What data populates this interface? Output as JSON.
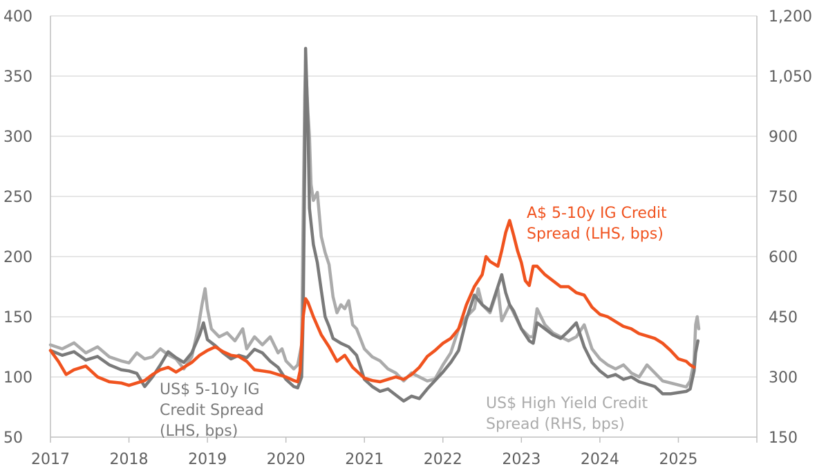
{
  "chart_data": {
    "type": "line",
    "title": "",
    "xlabel": "",
    "ylabel": "",
    "x_ticks": [
      "2017",
      "2018",
      "2019",
      "2020",
      "2021",
      "2022",
      "2023",
      "2024",
      "2025"
    ],
    "xlim": [
      2017,
      2026
    ],
    "y_left": {
      "lim": [
        50,
        400
      ],
      "ticks": [
        "50",
        "100",
        "150",
        "200",
        "250",
        "300",
        "350",
        "400"
      ]
    },
    "y_right": {
      "lim": [
        150,
        1200
      ],
      "ticks": [
        "150",
        "300",
        "450",
        "600",
        "750",
        "900",
        "1,050",
        "1,200"
      ]
    },
    "grid": true,
    "series": [
      {
        "name": "US$ High Yield Credit Spread (RHS, bps)",
        "axis": "right",
        "color": "#ababab",
        "points": [
          [
            2017.0,
            380
          ],
          [
            2017.15,
            370
          ],
          [
            2017.3,
            385
          ],
          [
            2017.45,
            360
          ],
          [
            2017.6,
            375
          ],
          [
            2017.75,
            350
          ],
          [
            2017.9,
            340
          ],
          [
            2018.0,
            335
          ],
          [
            2018.1,
            360
          ],
          [
            2018.2,
            345
          ],
          [
            2018.3,
            350
          ],
          [
            2018.4,
            370
          ],
          [
            2018.5,
            355
          ],
          [
            2018.6,
            345
          ],
          [
            2018.7,
            320
          ],
          [
            2018.8,
            350
          ],
          [
            2018.88,
            420
          ],
          [
            2018.93,
            480
          ],
          [
            2018.97,
            520
          ],
          [
            2019.0,
            470
          ],
          [
            2019.05,
            420
          ],
          [
            2019.15,
            400
          ],
          [
            2019.25,
            410
          ],
          [
            2019.35,
            390
          ],
          [
            2019.45,
            420
          ],
          [
            2019.5,
            370
          ],
          [
            2019.6,
            400
          ],
          [
            2019.7,
            380
          ],
          [
            2019.8,
            400
          ],
          [
            2019.9,
            360
          ],
          [
            2019.95,
            370
          ],
          [
            2020.0,
            340
          ],
          [
            2020.1,
            320
          ],
          [
            2020.15,
            330
          ],
          [
            2020.2,
            380
          ],
          [
            2020.22,
            700
          ],
          [
            2020.24,
            1000
          ],
          [
            2020.25,
            1090
          ],
          [
            2020.28,
            960
          ],
          [
            2020.3,
            900
          ],
          [
            2020.32,
            780
          ],
          [
            2020.35,
            740
          ],
          [
            2020.4,
            760
          ],
          [
            2020.45,
            650
          ],
          [
            2020.5,
            610
          ],
          [
            2020.55,
            580
          ],
          [
            2020.6,
            500
          ],
          [
            2020.65,
            460
          ],
          [
            2020.7,
            480
          ],
          [
            2020.75,
            470
          ],
          [
            2020.8,
            490
          ],
          [
            2020.85,
            430
          ],
          [
            2020.9,
            420
          ],
          [
            2021.0,
            370
          ],
          [
            2021.1,
            350
          ],
          [
            2021.2,
            340
          ],
          [
            2021.3,
            320
          ],
          [
            2021.4,
            310
          ],
          [
            2021.5,
            290
          ],
          [
            2021.6,
            310
          ],
          [
            2021.7,
            300
          ],
          [
            2021.8,
            290
          ],
          [
            2021.9,
            295
          ],
          [
            2022.0,
            330
          ],
          [
            2022.1,
            360
          ],
          [
            2022.2,
            420
          ],
          [
            2022.3,
            450
          ],
          [
            2022.4,
            470
          ],
          [
            2022.45,
            520
          ],
          [
            2022.5,
            480
          ],
          [
            2022.6,
            460
          ],
          [
            2022.7,
            520
          ],
          [
            2022.75,
            440
          ],
          [
            2022.85,
            480
          ],
          [
            2022.95,
            440
          ],
          [
            2023.0,
            420
          ],
          [
            2023.1,
            400
          ],
          [
            2023.15,
            400
          ],
          [
            2023.2,
            470
          ],
          [
            2023.3,
            430
          ],
          [
            2023.4,
            410
          ],
          [
            2023.5,
            400
          ],
          [
            2023.6,
            390
          ],
          [
            2023.7,
            400
          ],
          [
            2023.8,
            430
          ],
          [
            2023.9,
            370
          ],
          [
            2024.0,
            345
          ],
          [
            2024.1,
            330
          ],
          [
            2024.2,
            320
          ],
          [
            2024.3,
            330
          ],
          [
            2024.4,
            310
          ],
          [
            2024.5,
            300
          ],
          [
            2024.6,
            330
          ],
          [
            2024.7,
            310
          ],
          [
            2024.8,
            290
          ],
          [
            2024.9,
            285
          ],
          [
            2025.0,
            280
          ],
          [
            2025.1,
            275
          ],
          [
            2025.15,
            290
          ],
          [
            2025.2,
            340
          ],
          [
            2025.22,
            430
          ],
          [
            2025.24,
            450
          ],
          [
            2025.26,
            420
          ]
        ]
      },
      {
        "name": "US$ 5-10y IG Credit Spread (LHS, bps)",
        "axis": "left",
        "color": "#7a7a7a",
        "points": [
          [
            2017.0,
            122
          ],
          [
            2017.15,
            118
          ],
          [
            2017.3,
            121
          ],
          [
            2017.45,
            114
          ],
          [
            2017.6,
            117
          ],
          [
            2017.75,
            110
          ],
          [
            2017.9,
            106
          ],
          [
            2018.0,
            105
          ],
          [
            2018.1,
            103
          ],
          [
            2018.2,
            92
          ],
          [
            2018.3,
            100
          ],
          [
            2018.4,
            110
          ],
          [
            2018.5,
            121
          ],
          [
            2018.6,
            116
          ],
          [
            2018.7,
            112
          ],
          [
            2018.8,
            120
          ],
          [
            2018.9,
            135
          ],
          [
            2018.95,
            145
          ],
          [
            2019.0,
            131
          ],
          [
            2019.1,
            126
          ],
          [
            2019.2,
            120
          ],
          [
            2019.3,
            115
          ],
          [
            2019.4,
            118
          ],
          [
            2019.5,
            116
          ],
          [
            2019.6,
            123
          ],
          [
            2019.7,
            120
          ],
          [
            2019.8,
            113
          ],
          [
            2019.9,
            108
          ],
          [
            2020.0,
            98
          ],
          [
            2020.1,
            92
          ],
          [
            2020.15,
            91
          ],
          [
            2020.2,
            100
          ],
          [
            2020.22,
            150
          ],
          [
            2020.24,
            280
          ],
          [
            2020.25,
            373
          ],
          [
            2020.28,
            310
          ],
          [
            2020.3,
            240
          ],
          [
            2020.35,
            210
          ],
          [
            2020.4,
            195
          ],
          [
            2020.45,
            172
          ],
          [
            2020.5,
            150
          ],
          [
            2020.55,
            142
          ],
          [
            2020.6,
            132
          ],
          [
            2020.7,
            128
          ],
          [
            2020.8,
            125
          ],
          [
            2020.9,
            118
          ],
          [
            2021.0,
            98
          ],
          [
            2021.1,
            92
          ],
          [
            2021.2,
            88
          ],
          [
            2021.3,
            90
          ],
          [
            2021.4,
            85
          ],
          [
            2021.5,
            80
          ],
          [
            2021.6,
            84
          ],
          [
            2021.7,
            82
          ],
          [
            2021.8,
            90
          ],
          [
            2021.9,
            97
          ],
          [
            2022.0,
            104
          ],
          [
            2022.1,
            112
          ],
          [
            2022.2,
            122
          ],
          [
            2022.3,
            148
          ],
          [
            2022.4,
            168
          ],
          [
            2022.5,
            160
          ],
          [
            2022.6,
            155
          ],
          [
            2022.7,
            175
          ],
          [
            2022.75,
            185
          ],
          [
            2022.8,
            170
          ],
          [
            2022.85,
            160
          ],
          [
            2022.9,
            155
          ],
          [
            2023.0,
            140
          ],
          [
            2023.1,
            130
          ],
          [
            2023.15,
            128
          ],
          [
            2023.2,
            145
          ],
          [
            2023.3,
            140
          ],
          [
            2023.4,
            135
          ],
          [
            2023.5,
            132
          ],
          [
            2023.6,
            138
          ],
          [
            2023.7,
            145
          ],
          [
            2023.8,
            125
          ],
          [
            2023.9,
            112
          ],
          [
            2024.0,
            105
          ],
          [
            2024.1,
            100
          ],
          [
            2024.2,
            102
          ],
          [
            2024.3,
            98
          ],
          [
            2024.4,
            100
          ],
          [
            2024.5,
            96
          ],
          [
            2024.6,
            94
          ],
          [
            2024.7,
            92
          ],
          [
            2024.8,
            86
          ],
          [
            2024.9,
            86
          ],
          [
            2025.0,
            87
          ],
          [
            2025.1,
            88
          ],
          [
            2025.15,
            90
          ],
          [
            2025.2,
            105
          ],
          [
            2025.22,
            120
          ],
          [
            2025.25,
            130
          ]
        ]
      },
      {
        "name": "A$ 5-10y IG Credit Spread (LHS, bps)",
        "axis": "left",
        "color": "#f0531f",
        "points": [
          [
            2017.0,
            122
          ],
          [
            2017.1,
            113
          ],
          [
            2017.2,
            102
          ],
          [
            2017.3,
            106
          ],
          [
            2017.45,
            109
          ],
          [
            2017.6,
            100
          ],
          [
            2017.75,
            96
          ],
          [
            2017.9,
            95
          ],
          [
            2018.0,
            93
          ],
          [
            2018.1,
            95
          ],
          [
            2018.2,
            97
          ],
          [
            2018.3,
            102
          ],
          [
            2018.4,
            106
          ],
          [
            2018.5,
            108
          ],
          [
            2018.6,
            104
          ],
          [
            2018.7,
            108
          ],
          [
            2018.8,
            112
          ],
          [
            2018.9,
            118
          ],
          [
            2019.0,
            122
          ],
          [
            2019.1,
            125
          ],
          [
            2019.2,
            121
          ],
          [
            2019.3,
            118
          ],
          [
            2019.4,
            117
          ],
          [
            2019.5,
            113
          ],
          [
            2019.6,
            106
          ],
          [
            2019.7,
            105
          ],
          [
            2019.8,
            104
          ],
          [
            2019.9,
            102
          ],
          [
            2020.0,
            100
          ],
          [
            2020.1,
            97
          ],
          [
            2020.15,
            96
          ],
          [
            2020.18,
            105
          ],
          [
            2020.22,
            150
          ],
          [
            2020.25,
            165
          ],
          [
            2020.28,
            162
          ],
          [
            2020.35,
            150
          ],
          [
            2020.45,
            135
          ],
          [
            2020.55,
            125
          ],
          [
            2020.65,
            113
          ],
          [
            2020.75,
            118
          ],
          [
            2020.85,
            108
          ],
          [
            2020.95,
            102
          ],
          [
            2021.0,
            99
          ],
          [
            2021.1,
            97
          ],
          [
            2021.2,
            96
          ],
          [
            2021.3,
            98
          ],
          [
            2021.4,
            100
          ],
          [
            2021.5,
            98
          ],
          [
            2021.6,
            102
          ],
          [
            2021.7,
            108
          ],
          [
            2021.8,
            117
          ],
          [
            2021.9,
            122
          ],
          [
            2022.0,
            128
          ],
          [
            2022.1,
            132
          ],
          [
            2022.2,
            140
          ],
          [
            2022.3,
            160
          ],
          [
            2022.4,
            175
          ],
          [
            2022.5,
            185
          ],
          [
            2022.55,
            200
          ],
          [
            2022.6,
            196
          ],
          [
            2022.7,
            192
          ],
          [
            2022.75,
            205
          ],
          [
            2022.8,
            220
          ],
          [
            2022.85,
            230
          ],
          [
            2022.9,
            218
          ],
          [
            2022.95,
            205
          ],
          [
            2023.0,
            195
          ],
          [
            2023.05,
            180
          ],
          [
            2023.1,
            176
          ],
          [
            2023.15,
            192
          ],
          [
            2023.2,
            192
          ],
          [
            2023.3,
            185
          ],
          [
            2023.4,
            180
          ],
          [
            2023.5,
            175
          ],
          [
            2023.6,
            175
          ],
          [
            2023.7,
            170
          ],
          [
            2023.8,
            168
          ],
          [
            2023.9,
            158
          ],
          [
            2024.0,
            152
          ],
          [
            2024.1,
            150
          ],
          [
            2024.2,
            146
          ],
          [
            2024.3,
            142
          ],
          [
            2024.4,
            140
          ],
          [
            2024.5,
            136
          ],
          [
            2024.6,
            134
          ],
          [
            2024.7,
            132
          ],
          [
            2024.8,
            128
          ],
          [
            2024.9,
            122
          ],
          [
            2025.0,
            115
          ],
          [
            2025.1,
            113
          ],
          [
            2025.15,
            110
          ],
          [
            2025.2,
            108
          ]
        ]
      }
    ],
    "annotations": [
      {
        "series": 2,
        "lines": [
          "A$ 5-10y IG Credit",
          "Spread (LHS, bps)"
        ]
      },
      {
        "series": 1,
        "lines": [
          "US$ 5-10y IG",
          "Credit Spread",
          "(LHS, bps)"
        ]
      },
      {
        "series": 0,
        "lines": [
          "US$ High Yield Credit",
          "Spread (RHS, bps)"
        ]
      }
    ]
  }
}
